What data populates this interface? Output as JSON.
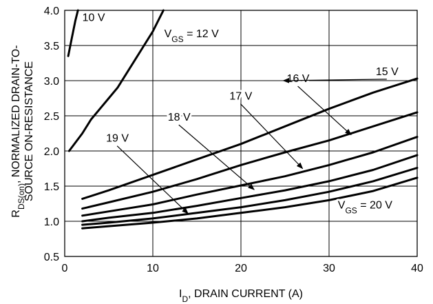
{
  "chart_data": {
    "type": "line",
    "xlabel": "I_D, DRAIN CURRENT (A)",
    "ylabel": "R_DS(on), NORMALIZED DRAIN-TO-SOURCE ON-RESISTANCE",
    "xlim": [
      0,
      40
    ],
    "ylim": [
      0.5,
      4.0
    ],
    "x_ticks": [
      0,
      10,
      20,
      30,
      40
    ],
    "y_ticks": [
      0.5,
      1.0,
      1.5,
      2.0,
      2.5,
      3.0,
      3.5,
      4.0
    ],
    "grid": true,
    "series": [
      {
        "name": "10 V",
        "points": [
          [
            0.4,
            3.35
          ],
          [
            0.8,
            3.6
          ],
          [
            1.2,
            3.85
          ],
          [
            1.5,
            4.0
          ]
        ]
      },
      {
        "name": "V_GS = 12 V",
        "points": [
          [
            0.5,
            2.0
          ],
          [
            2,
            2.25
          ],
          [
            3,
            2.45
          ],
          [
            4,
            2.6
          ],
          [
            5,
            2.75
          ],
          [
            6,
            2.9
          ],
          [
            7,
            3.1
          ],
          [
            8,
            3.3
          ],
          [
            9,
            3.5
          ],
          [
            10,
            3.7
          ],
          [
            11,
            3.95
          ],
          [
            11.2,
            4.0
          ]
        ]
      },
      {
        "name": "15 V",
        "points": [
          [
            2,
            1.32
          ],
          [
            5,
            1.44
          ],
          [
            10,
            1.66
          ],
          [
            15,
            1.88
          ],
          [
            20,
            2.1
          ],
          [
            25,
            2.35
          ],
          [
            30,
            2.6
          ],
          [
            35,
            2.83
          ],
          [
            40,
            3.03
          ]
        ]
      },
      {
        "name": "16 V",
        "points": [
          [
            2,
            1.18
          ],
          [
            5,
            1.27
          ],
          [
            10,
            1.42
          ],
          [
            15,
            1.6
          ],
          [
            20,
            1.8
          ],
          [
            25,
            1.98
          ],
          [
            30,
            2.15
          ],
          [
            35,
            2.35
          ],
          [
            40,
            2.55
          ]
        ]
      },
      {
        "name": "17 V",
        "points": [
          [
            2,
            1.08
          ],
          [
            5,
            1.14
          ],
          [
            10,
            1.24
          ],
          [
            15,
            1.38
          ],
          [
            20,
            1.51
          ],
          [
            25,
            1.64
          ],
          [
            30,
            1.8
          ],
          [
            35,
            1.98
          ],
          [
            40,
            2.2
          ]
        ]
      },
      {
        "name": "18 V",
        "points": [
          [
            2,
            1.0
          ],
          [
            5,
            1.05
          ],
          [
            10,
            1.12
          ],
          [
            15,
            1.22
          ],
          [
            20,
            1.33
          ],
          [
            25,
            1.44
          ],
          [
            30,
            1.57
          ],
          [
            35,
            1.73
          ],
          [
            40,
            1.94
          ]
        ]
      },
      {
        "name": "19 V",
        "points": [
          [
            2,
            0.95
          ],
          [
            5,
            0.98
          ],
          [
            10,
            1.04
          ],
          [
            15,
            1.12
          ],
          [
            20,
            1.2
          ],
          [
            25,
            1.3
          ],
          [
            30,
            1.42
          ],
          [
            35,
            1.57
          ],
          [
            40,
            1.76
          ]
        ]
      },
      {
        "name": "V_GS = 20 V",
        "points": [
          [
            2,
            0.9
          ],
          [
            5,
            0.93
          ],
          [
            10,
            0.98
          ],
          [
            15,
            1.04
          ],
          [
            20,
            1.12
          ],
          [
            25,
            1.2
          ],
          [
            30,
            1.3
          ],
          [
            35,
            1.43
          ],
          [
            40,
            1.62
          ]
        ]
      }
    ],
    "annotations": [
      {
        "text": "10 V",
        "x": 2.0,
        "y": 3.85
      },
      {
        "text": "V_GS = 12 V",
        "x": 11.3,
        "y": 3.62
      },
      {
        "text": "16 V",
        "x": 25.2,
        "y": 2.98,
        "arrow_to": [
          32.5,
          2.23
        ]
      },
      {
        "text": "15 V",
        "x": 35.3,
        "y": 3.08,
        "arrow_to": [
          24.8,
          3.0
        ]
      },
      {
        "text": "17 V",
        "x": 18.7,
        "y": 2.73,
        "arrow_to": [
          27.0,
          1.75
        ]
      },
      {
        "text": "18 V",
        "x": 11.7,
        "y": 2.43,
        "arrow_to": [
          21.5,
          1.45
        ]
      },
      {
        "text": "19 V",
        "x": 4.7,
        "y": 2.13,
        "arrow_to": [
          14.0,
          1.11
        ]
      },
      {
        "text": "V_GS = 20 V",
        "x": 31.0,
        "y": 1.18
      }
    ]
  }
}
